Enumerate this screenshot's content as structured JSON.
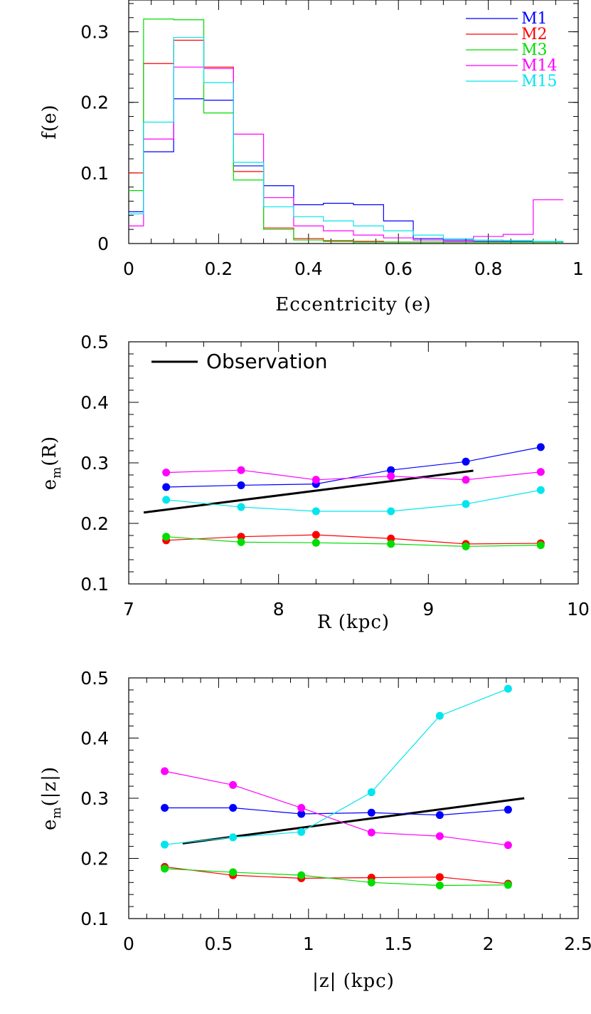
{
  "chart_data": [
    {
      "type": "line",
      "subtype": "step-histogram",
      "xlabel": "Eccentricity (e)",
      "ylabel": "f(e)",
      "xlim": [
        0,
        1
      ],
      "ylim": [
        0,
        0.345
      ],
      "xticks": [
        0,
        0.2,
        0.4,
        0.6,
        0.8,
        1
      ],
      "xtick_labels": [
        "0",
        "0.2",
        "0.4",
        "0.6",
        "0.8",
        "1"
      ],
      "yticks": [
        0,
        0.1,
        0.2,
        0.3
      ],
      "ytick_labels": [
        "0",
        "0.1",
        "0.2",
        "0.3"
      ],
      "legend_position": "top-right",
      "bin_edges": [
        0,
        0.033,
        0.1,
        0.167,
        0.233,
        0.3,
        0.367,
        0.433,
        0.5,
        0.567,
        0.633,
        0.7,
        0.767,
        0.833,
        0.9,
        0.967
      ],
      "series": [
        {
          "name": "M1",
          "color": "#0000ff",
          "values": [
            0.045,
            0.13,
            0.205,
            0.203,
            0.11,
            0.082,
            0.055,
            0.057,
            0.055,
            0.032,
            0.007,
            0.005,
            0.003,
            0.003,
            0.002
          ]
        },
        {
          "name": "M2",
          "color": "#ff0000",
          "values": [
            0.1,
            0.255,
            0.288,
            0.25,
            0.102,
            0.022,
            0.007,
            0.004,
            0.003,
            0.002,
            0.002,
            0.002,
            0.002,
            0.002,
            0.002
          ]
        },
        {
          "name": "M3",
          "color": "#00dd00",
          "values": [
            0.075,
            0.318,
            0.317,
            0.185,
            0.09,
            0.02,
            0.005,
            0.003,
            0.002,
            0.002,
            0.002,
            0.002,
            0.002,
            0.002,
            0.002
          ]
        },
        {
          "name": "M14",
          "color": "#ff00ff",
          "values": [
            0.025,
            0.148,
            0.25,
            0.248,
            0.155,
            0.065,
            0.025,
            0.018,
            0.012,
            0.008,
            0.005,
            0.003,
            0.01,
            0.013,
            0.062
          ]
        },
        {
          "name": "M15",
          "color": "#00e5ee",
          "values": [
            0.042,
            0.172,
            0.292,
            0.228,
            0.115,
            0.052,
            0.038,
            0.032,
            0.025,
            0.018,
            0.012,
            0.007,
            0.005,
            0.004,
            0.003
          ]
        }
      ]
    },
    {
      "type": "line",
      "xlabel": "R (kpc)",
      "ylabel": "e_m(R)",
      "ylabel_main": "e",
      "ylabel_sub": "m",
      "ylabel_rest": "(R)",
      "xlim": [
        7,
        10
      ],
      "ylim": [
        0.1,
        0.5
      ],
      "xticks": [
        7,
        8,
        9,
        10
      ],
      "xtick_labels": [
        "7",
        "8",
        "9",
        "10"
      ],
      "yticks": [
        0.1,
        0.2,
        0.3,
        0.4,
        0.5
      ],
      "ytick_labels": [
        "0.1",
        "0.2",
        "0.3",
        "0.4",
        "0.5"
      ],
      "legend_position": "top-left",
      "observation": {
        "label": "Observation",
        "color": "#000000",
        "x": [
          7.1,
          9.3
        ],
        "y": [
          0.218,
          0.287
        ]
      },
      "x": [
        7.25,
        7.75,
        8.25,
        8.75,
        9.25,
        9.75
      ],
      "series": [
        {
          "name": "M1",
          "color": "#0000ff",
          "values": [
            0.26,
            0.263,
            0.265,
            0.288,
            0.302,
            0.326
          ]
        },
        {
          "name": "M2",
          "color": "#ff0000",
          "values": [
            0.172,
            0.178,
            0.181,
            0.175,
            0.166,
            0.167
          ]
        },
        {
          "name": "M3",
          "color": "#00dd00",
          "values": [
            0.178,
            0.169,
            0.168,
            0.166,
            0.162,
            0.164
          ]
        },
        {
          "name": "M14",
          "color": "#ff00ff",
          "values": [
            0.284,
            0.288,
            0.272,
            0.278,
            0.272,
            0.285
          ]
        },
        {
          "name": "M15",
          "color": "#00e5ee",
          "values": [
            0.239,
            0.227,
            0.22,
            0.22,
            0.232,
            0.255
          ]
        }
      ]
    },
    {
      "type": "line",
      "xlabel": "|z| (kpc)",
      "ylabel": "e_m(|z|)",
      "ylabel_main": "e",
      "ylabel_sub": "m",
      "ylabel_rest": "(|z|)",
      "xlim": [
        0,
        2.5
      ],
      "ylim": [
        0.1,
        0.5
      ],
      "xticks": [
        0,
        0.5,
        1,
        1.5,
        2,
        2.5
      ],
      "xtick_labels": [
        "0",
        "0.5",
        "1",
        "1.5",
        "2",
        "2.5"
      ],
      "yticks": [
        0.1,
        0.2,
        0.3,
        0.4,
        0.5
      ],
      "ytick_labels": [
        "0.1",
        "0.2",
        "0.3",
        "0.4",
        "0.5"
      ],
      "observation": {
        "color": "#000000",
        "x": [
          0.3,
          2.2
        ],
        "y": [
          0.225,
          0.3
        ]
      },
      "x": [
        0.2,
        0.58,
        0.96,
        1.35,
        1.73,
        2.11
      ],
      "series": [
        {
          "name": "M1",
          "color": "#0000ff",
          "values": [
            0.284,
            0.284,
            0.274,
            0.276,
            0.272,
            0.281
          ]
        },
        {
          "name": "M2",
          "color": "#ff0000",
          "values": [
            0.186,
            0.172,
            0.167,
            0.168,
            0.169,
            0.158
          ]
        },
        {
          "name": "M3",
          "color": "#00dd00",
          "values": [
            0.183,
            0.177,
            0.172,
            0.16,
            0.155,
            0.156
          ]
        },
        {
          "name": "M14",
          "color": "#ff00ff",
          "values": [
            0.345,
            0.322,
            0.284,
            0.243,
            0.237,
            0.222
          ]
        },
        {
          "name": "M15",
          "color": "#00e5ee",
          "values": [
            0.223,
            0.235,
            0.244,
            0.31,
            0.437,
            0.482
          ]
        }
      ]
    }
  ]
}
